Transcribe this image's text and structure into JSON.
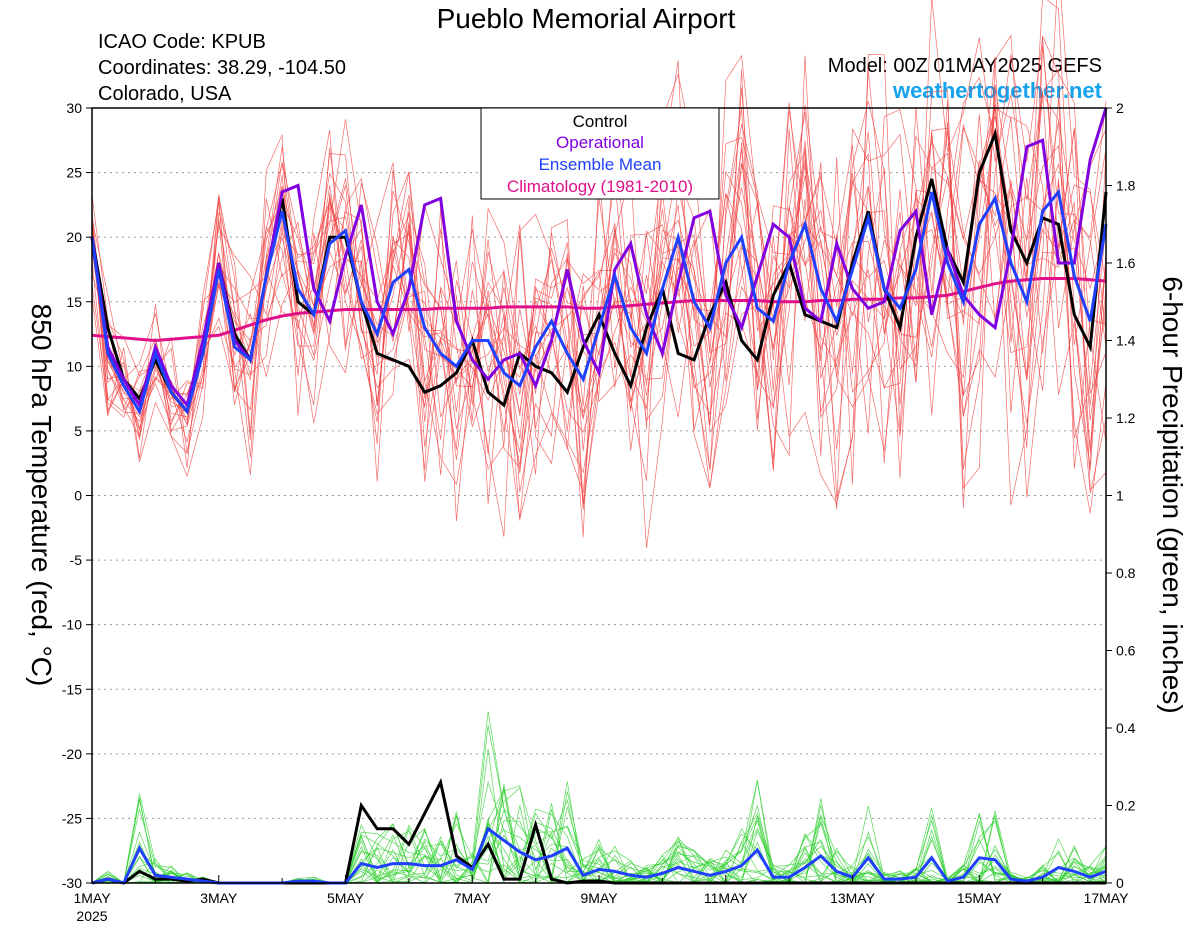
{
  "header": {
    "title": "Pueblo Memorial Airport",
    "icao": "ICAO Code: KPUB",
    "coordinates": "Coordinates: 38.29, -104.50",
    "location": "Colorado, USA",
    "model": "Model: 00Z 01MAY2025 GEFS",
    "site": "weathertogether.net"
  },
  "legend": {
    "entries": [
      {
        "label": "Control",
        "color": "#000000"
      },
      {
        "label": "Operational",
        "color": "#8000e0"
      },
      {
        "label": "Ensemble Mean",
        "color": "#2040ff"
      },
      {
        "label": "Climatology (1981-2010)",
        "color": "#e0108a"
      }
    ]
  },
  "colors": {
    "members_temp": "#f03c3c",
    "members_precip": "#30d030",
    "control": "#000000",
    "operational": "#8000e0",
    "ensemble_mean": "#2040ff",
    "climatology": "#e0108a"
  },
  "chart_data": {
    "type": "line",
    "ylabel": "850 hPa Temperature (red, °C)",
    "y2label": "6-hour Precipitation (green, inches)",
    "ylim": [
      -30,
      30
    ],
    "y2lim": [
      0,
      2
    ],
    "xlim": [
      0,
      64
    ],
    "x_unit": "6-hour steps from 00Z 01MAY2025",
    "yticks": [
      "30",
      "25",
      "20",
      "15",
      "10",
      "5",
      "0",
      "-5",
      "-10",
      "-15",
      "-20",
      "-25",
      "-30"
    ],
    "y2ticks": [
      "2",
      "1.8",
      "1.6",
      "1.4",
      "1.2",
      "1",
      "0.8",
      "0.6",
      "0.4",
      "0.2",
      "0"
    ],
    "xticks": [
      {
        "x": 0,
        "label": "1MAY",
        "sub": "2025"
      },
      {
        "x": 8,
        "label": "3MAY"
      },
      {
        "x": 16,
        "label": "5MAY"
      },
      {
        "x": 24,
        "label": "7MAY"
      },
      {
        "x": 32,
        "label": "9MAY"
      },
      {
        "x": 40,
        "label": "11MAY"
      },
      {
        "x": 48,
        "label": "13MAY"
      },
      {
        "x": 56,
        "label": "15MAY"
      },
      {
        "x": 64,
        "label": "17MAY"
      }
    ],
    "grid": "dotted horizontal",
    "legend_position": "top-center",
    "temperature": {
      "control": [
        20,
        13,
        9,
        7.5,
        10.5,
        8,
        6.5,
        11.5,
        18,
        12.5,
        10.5,
        17,
        23,
        15,
        14,
        20,
        20,
        15,
        11,
        10.5,
        10,
        8,
        8.5,
        9.5,
        12,
        8,
        7,
        11,
        10,
        9.5,
        8,
        11.5,
        14,
        11,
        8.5,
        13,
        16,
        11,
        10.5,
        14,
        16.5,
        12,
        10.5,
        15.5,
        18,
        14,
        13.5,
        13,
        18,
        22,
        16,
        13,
        20,
        24.5,
        19,
        16.5,
        25,
        28,
        20.5,
        18,
        21.5,
        21,
        14,
        11.5,
        23.5
      ],
      "operational": [
        20,
        11.5,
        9,
        7,
        11.5,
        8.5,
        7,
        12,
        18,
        12,
        10.5,
        17,
        23.5,
        24,
        16,
        13.5,
        18.5,
        22.5,
        15,
        12.5,
        16,
        22.5,
        23,
        13.5,
        10.5,
        9,
        10.5,
        11,
        8.5,
        12,
        17.5,
        12,
        9.5,
        17.5,
        19.5,
        14,
        11,
        16.5,
        21.5,
        22,
        15.5,
        13,
        17,
        21,
        20,
        14.5,
        13.5,
        19.5,
        16,
        14.5,
        15,
        20.5,
        22,
        14,
        19,
        15.5,
        14,
        13,
        19,
        27,
        27.5,
        18,
        18,
        26,
        30
      ],
      "ensemble_mean": [
        20,
        11,
        8.5,
        6.5,
        11,
        8,
        6.5,
        11,
        17.5,
        11.5,
        10.5,
        17,
        22,
        16,
        14,
        19.5,
        20.5,
        15,
        12.5,
        16.5,
        17.5,
        13,
        11,
        10,
        12,
        12,
        9.5,
        8.5,
        11.5,
        13.5,
        11,
        9,
        13,
        17,
        13,
        11,
        16,
        20,
        15,
        13,
        18,
        20,
        14.5,
        13.5,
        18,
        21,
        16,
        13.5,
        17.5,
        21.5,
        16,
        14.5,
        17.5,
        23.5,
        18,
        15,
        21,
        23,
        18,
        15,
        22,
        23.5,
        17,
        13.5,
        21
      ],
      "climatology": [
        12.4,
        12.3,
        12.2,
        12.1,
        12,
        12.1,
        12.2,
        12.3,
        12.4,
        12.8,
        13.2,
        13.6,
        13.9,
        14.1,
        14.2,
        14.3,
        14.4,
        14.4,
        14.4,
        14.4,
        14.4,
        14.4,
        14.5,
        14.5,
        14.5,
        14.5,
        14.6,
        14.6,
        14.6,
        14.6,
        14.6,
        14.5,
        14.5,
        14.6,
        14.7,
        14.8,
        14.9,
        15,
        15.1,
        15.1,
        15.1,
        15.1,
        15.1,
        15,
        15,
        15,
        15.1,
        15.1,
        15.2,
        15.2,
        15.2,
        15.3,
        15.3,
        15.4,
        15.5,
        15.8,
        16.1,
        16.4,
        16.6,
        16.7,
        16.8,
        16.8,
        16.8,
        16.7,
        16.6
      ]
    },
    "precipitation": {
      "control": [
        0,
        0.01,
        0,
        0.03,
        0.01,
        0.01,
        0.005,
        0.01,
        0,
        0,
        0,
        0,
        0,
        0,
        0,
        0,
        0,
        0.2,
        0.14,
        0.14,
        0.1,
        0.18,
        0.26,
        0.07,
        0.04,
        0.1,
        0.01,
        0.01,
        0.15,
        0.01,
        0,
        0.005,
        0.005,
        0,
        0,
        0,
        0,
        0,
        0,
        0,
        0,
        0,
        0,
        0,
        0,
        0,
        0,
        0,
        0,
        0,
        0,
        0,
        0,
        0,
        0,
        0,
        0,
        0,
        0,
        0,
        0,
        0,
        0,
        0,
        0
      ],
      "ensemble_mean": [
        0,
        0.01,
        0,
        0.09,
        0.02,
        0.015,
        0.01,
        0.005,
        0,
        0,
        0,
        0,
        0,
        0.005,
        0.005,
        0,
        0,
        0.05,
        0.04,
        0.05,
        0.05,
        0.045,
        0.045,
        0.06,
        0.035,
        0.14,
        0.11,
        0.08,
        0.06,
        0.07,
        0.09,
        0.02,
        0.035,
        0.03,
        0.02,
        0.015,
        0.025,
        0.04,
        0.03,
        0.02,
        0.03,
        0.045,
        0.085,
        0.015,
        0.015,
        0.04,
        0.07,
        0.03,
        0.015,
        0.065,
        0.01,
        0.01,
        0.015,
        0.065,
        0.005,
        0.015,
        0.065,
        0.06,
        0.01,
        0.005,
        0.015,
        0.04,
        0.03,
        0.015,
        0.03
      ]
    }
  }
}
